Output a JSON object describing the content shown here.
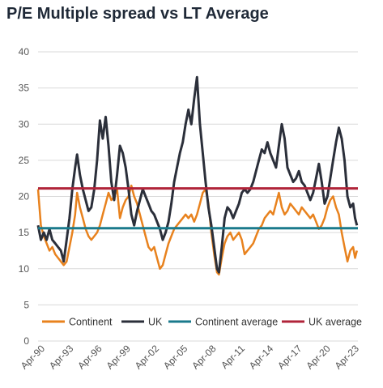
{
  "chart_data": {
    "type": "line",
    "title": "P/E Multiple spread vs LT Average",
    "xlabel": "",
    "ylabel": "",
    "ylim": [
      0,
      40
    ],
    "yticks": [
      0,
      5,
      10,
      15,
      20,
      25,
      30,
      35,
      40
    ],
    "xrange": [
      1990.0,
      2023.6
    ],
    "xticks": [
      {
        "label": "Apr-90",
        "x": 1990.25
      },
      {
        "label": "Apr-93",
        "x": 1993.25
      },
      {
        "label": "Apr-96",
        "x": 1996.25
      },
      {
        "label": "Apr-99",
        "x": 1999.25
      },
      {
        "label": "Apr-02",
        "x": 2002.25
      },
      {
        "label": "Apr-05",
        "x": 2005.25
      },
      {
        "label": "Apr-08",
        "x": 2008.25
      },
      {
        "label": "Apr-11",
        "x": 2011.25
      },
      {
        "label": "Apr-14",
        "x": 2014.25
      },
      {
        "label": "Apr-17",
        "x": 2017.25
      },
      {
        "label": "Apr-20",
        "x": 2020.25
      },
      {
        "label": "Apr-23",
        "x": 2023.25
      }
    ],
    "grid": "horizontal",
    "legend_position": "bottom",
    "colors": {
      "continent": "#e8821e",
      "uk": "#2b2f3a",
      "continent_average": "#1a7a8c",
      "uk_average": "#b0243a",
      "grid": "#d9d9d9"
    },
    "series": [
      {
        "name": "Continent",
        "color": "#e8821e",
        "points": [
          [
            1990.0,
            21.0
          ],
          [
            1990.3,
            16.0
          ],
          [
            1990.6,
            14.5
          ],
          [
            1990.9,
            13.5
          ],
          [
            1991.2,
            12.5
          ],
          [
            1991.5,
            13.0
          ],
          [
            1991.8,
            12.0
          ],
          [
            1992.1,
            11.5
          ],
          [
            1992.4,
            11.0
          ],
          [
            1992.7,
            10.5
          ],
          [
            1993.0,
            11.0
          ],
          [
            1993.3,
            13.0
          ],
          [
            1993.6,
            15.0
          ],
          [
            1993.9,
            17.5
          ],
          [
            1994.1,
            20.5
          ],
          [
            1994.4,
            18.5
          ],
          [
            1994.7,
            17.0
          ],
          [
            1995.0,
            15.5
          ],
          [
            1995.3,
            14.5
          ],
          [
            1995.6,
            14.0
          ],
          [
            1995.9,
            14.5
          ],
          [
            1996.2,
            15.0
          ],
          [
            1996.5,
            16.0
          ],
          [
            1996.8,
            17.5
          ],
          [
            1997.1,
            19.0
          ],
          [
            1997.4,
            20.5
          ],
          [
            1997.7,
            19.5
          ],
          [
            1998.0,
            20.0
          ],
          [
            1998.3,
            21.0
          ],
          [
            1998.6,
            17.0
          ],
          [
            1998.9,
            18.5
          ],
          [
            1999.2,
            19.5
          ],
          [
            1999.5,
            20.0
          ],
          [
            1999.8,
            21.5
          ],
          [
            2000.1,
            20.0
          ],
          [
            2000.4,
            19.0
          ],
          [
            2000.7,
            17.5
          ],
          [
            2001.0,
            16.0
          ],
          [
            2001.3,
            14.5
          ],
          [
            2001.6,
            13.0
          ],
          [
            2001.9,
            12.5
          ],
          [
            2002.2,
            13.0
          ],
          [
            2002.5,
            11.5
          ],
          [
            2002.8,
            10.0
          ],
          [
            2003.1,
            10.5
          ],
          [
            2003.4,
            12.0
          ],
          [
            2003.7,
            13.5
          ],
          [
            2004.0,
            14.5
          ],
          [
            2004.3,
            15.5
          ],
          [
            2004.6,
            16.0
          ],
          [
            2004.9,
            16.5
          ],
          [
            2005.2,
            17.0
          ],
          [
            2005.5,
            17.5
          ],
          [
            2005.8,
            17.0
          ],
          [
            2006.1,
            17.5
          ],
          [
            2006.4,
            16.5
          ],
          [
            2006.7,
            17.5
          ],
          [
            2007.0,
            19.0
          ],
          [
            2007.3,
            20.5
          ],
          [
            2007.6,
            21.0
          ],
          [
            2007.9,
            19.0
          ],
          [
            2008.2,
            15.0
          ],
          [
            2008.5,
            12.0
          ],
          [
            2008.8,
            9.5
          ],
          [
            2009.0,
            9.2
          ],
          [
            2009.3,
            11.5
          ],
          [
            2009.6,
            13.5
          ],
          [
            2009.9,
            14.5
          ],
          [
            2010.2,
            15.0
          ],
          [
            2010.5,
            14.0
          ],
          [
            2010.8,
            14.5
          ],
          [
            2011.1,
            15.0
          ],
          [
            2011.4,
            14.0
          ],
          [
            2011.7,
            12.0
          ],
          [
            2012.0,
            12.5
          ],
          [
            2012.3,
            13.0
          ],
          [
            2012.6,
            13.5
          ],
          [
            2012.9,
            14.5
          ],
          [
            2013.2,
            15.5
          ],
          [
            2013.5,
            16.0
          ],
          [
            2013.8,
            17.0
          ],
          [
            2014.1,
            17.5
          ],
          [
            2014.4,
            18.0
          ],
          [
            2014.7,
            17.5
          ],
          [
            2015.0,
            19.0
          ],
          [
            2015.3,
            20.5
          ],
          [
            2015.6,
            18.5
          ],
          [
            2015.9,
            17.5
          ],
          [
            2016.2,
            18.0
          ],
          [
            2016.5,
            19.0
          ],
          [
            2016.8,
            18.5
          ],
          [
            2017.1,
            18.0
          ],
          [
            2017.4,
            17.5
          ],
          [
            2017.7,
            18.5
          ],
          [
            2018.0,
            18.0
          ],
          [
            2018.3,
            17.5
          ],
          [
            2018.6,
            17.0
          ],
          [
            2018.9,
            17.5
          ],
          [
            2019.2,
            16.5
          ],
          [
            2019.5,
            15.5
          ],
          [
            2019.8,
            16.0
          ],
          [
            2020.1,
            17.0
          ],
          [
            2020.4,
            18.5
          ],
          [
            2020.7,
            19.5
          ],
          [
            2021.0,
            20.0
          ],
          [
            2021.3,
            18.5
          ],
          [
            2021.6,
            17.5
          ],
          [
            2021.9,
            15.0
          ],
          [
            2022.2,
            13.0
          ],
          [
            2022.5,
            11.0
          ],
          [
            2022.8,
            12.5
          ],
          [
            2023.1,
            13.0
          ],
          [
            2023.3,
            11.5
          ],
          [
            2023.5,
            12.5
          ]
        ]
      },
      {
        "name": "UK",
        "color": "#2b2f3a",
        "points": [
          [
            1990.0,
            16.0
          ],
          [
            1990.3,
            14.0
          ],
          [
            1990.6,
            15.0
          ],
          [
            1990.9,
            14.0
          ],
          [
            1991.2,
            15.5
          ],
          [
            1991.5,
            14.0
          ],
          [
            1991.8,
            13.5
          ],
          [
            1992.1,
            13.0
          ],
          [
            1992.4,
            12.5
          ],
          [
            1992.7,
            11.0
          ],
          [
            1993.0,
            14.0
          ],
          [
            1993.3,
            17.0
          ],
          [
            1993.6,
            21.0
          ],
          [
            1993.9,
            24.0
          ],
          [
            1994.1,
            25.8
          ],
          [
            1994.4,
            23.0
          ],
          [
            1994.7,
            21.0
          ],
          [
            1995.0,
            19.5
          ],
          [
            1995.3,
            18.0
          ],
          [
            1995.6,
            18.5
          ],
          [
            1995.9,
            21.0
          ],
          [
            1996.2,
            25.0
          ],
          [
            1996.5,
            30.5
          ],
          [
            1996.8,
            28.0
          ],
          [
            1997.1,
            31.0
          ],
          [
            1997.4,
            27.0
          ],
          [
            1997.7,
            22.0
          ],
          [
            1998.0,
            19.5
          ],
          [
            1998.3,
            23.0
          ],
          [
            1998.6,
            27.0
          ],
          [
            1998.9,
            26.0
          ],
          [
            1999.2,
            24.0
          ],
          [
            1999.5,
            21.0
          ],
          [
            1999.8,
            17.5
          ],
          [
            2000.1,
            16.0
          ],
          [
            2000.4,
            18.0
          ],
          [
            2000.7,
            19.5
          ],
          [
            2001.0,
            21.0
          ],
          [
            2001.3,
            20.0
          ],
          [
            2001.6,
            19.0
          ],
          [
            2001.9,
            18.0
          ],
          [
            2002.2,
            17.5
          ],
          [
            2002.5,
            16.5
          ],
          [
            2002.8,
            15.5
          ],
          [
            2003.1,
            14.0
          ],
          [
            2003.4,
            15.0
          ],
          [
            2003.7,
            16.5
          ],
          [
            2004.0,
            19.0
          ],
          [
            2004.3,
            22.0
          ],
          [
            2004.6,
            24.0
          ],
          [
            2004.9,
            26.0
          ],
          [
            2005.2,
            27.5
          ],
          [
            2005.5,
            30.0
          ],
          [
            2005.8,
            32.0
          ],
          [
            2006.1,
            30.0
          ],
          [
            2006.4,
            33.5
          ],
          [
            2006.7,
            36.5
          ],
          [
            2007.0,
            30.0
          ],
          [
            2007.3,
            26.0
          ],
          [
            2007.6,
            22.0
          ],
          [
            2007.9,
            18.5
          ],
          [
            2008.2,
            16.0
          ],
          [
            2008.5,
            13.0
          ],
          [
            2008.8,
            10.0
          ],
          [
            2009.0,
            9.5
          ],
          [
            2009.3,
            13.0
          ],
          [
            2009.6,
            17.0
          ],
          [
            2009.9,
            18.5
          ],
          [
            2010.2,
            18.0
          ],
          [
            2010.5,
            17.0
          ],
          [
            2010.8,
            18.0
          ],
          [
            2011.1,
            19.0
          ],
          [
            2011.4,
            20.5
          ],
          [
            2011.7,
            21.0
          ],
          [
            2012.0,
            20.5
          ],
          [
            2012.3,
            21.0
          ],
          [
            2012.6,
            22.0
          ],
          [
            2012.9,
            23.5
          ],
          [
            2013.2,
            25.0
          ],
          [
            2013.5,
            26.5
          ],
          [
            2013.8,
            26.0
          ],
          [
            2014.1,
            27.5
          ],
          [
            2014.4,
            26.0
          ],
          [
            2014.7,
            25.0
          ],
          [
            2015.0,
            24.0
          ],
          [
            2015.3,
            27.0
          ],
          [
            2015.6,
            30.0
          ],
          [
            2015.9,
            28.0
          ],
          [
            2016.2,
            24.0
          ],
          [
            2016.5,
            23.0
          ],
          [
            2016.8,
            22.0
          ],
          [
            2017.1,
            22.5
          ],
          [
            2017.4,
            23.5
          ],
          [
            2017.7,
            22.0
          ],
          [
            2018.0,
            21.5
          ],
          [
            2018.3,
            20.5
          ],
          [
            2018.6,
            19.5
          ],
          [
            2018.9,
            20.5
          ],
          [
            2019.2,
            22.5
          ],
          [
            2019.5,
            24.5
          ],
          [
            2019.8,
            22.0
          ],
          [
            2020.1,
            19.0
          ],
          [
            2020.4,
            20.0
          ],
          [
            2020.7,
            22.5
          ],
          [
            2021.0,
            25.0
          ],
          [
            2021.3,
            27.5
          ],
          [
            2021.6,
            29.5
          ],
          [
            2021.9,
            28.0
          ],
          [
            2022.2,
            25.0
          ],
          [
            2022.5,
            20.0
          ],
          [
            2022.8,
            18.5
          ],
          [
            2023.1,
            19.0
          ],
          [
            2023.3,
            17.0
          ],
          [
            2023.5,
            16.0
          ]
        ]
      },
      {
        "name": "Continent average",
        "color": "#1a7a8c",
        "value": 15.6
      },
      {
        "name": "UK average",
        "color": "#b0243a",
        "value": 21.1
      }
    ]
  }
}
